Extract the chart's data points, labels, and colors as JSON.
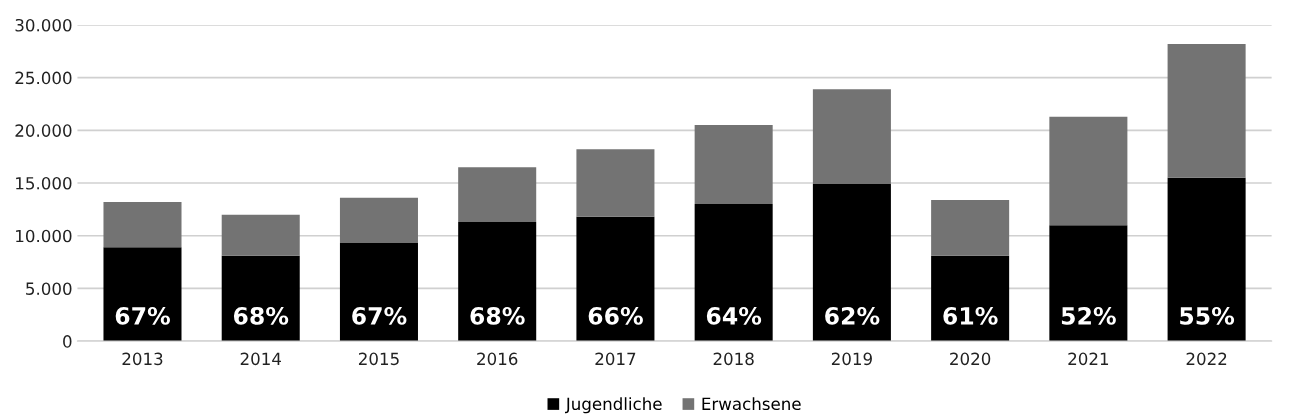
{
  "chart_data": {
    "type": "bar",
    "stacked": true,
    "categories": [
      "2013",
      "2014",
      "2015",
      "2016",
      "2017",
      "2018",
      "2019",
      "2020",
      "2021",
      "2022"
    ],
    "series": [
      {
        "name": "Jugendliche",
        "color": "#000000",
        "values": [
          8900,
          8100,
          9300,
          11300,
          11800,
          13000,
          14900,
          8100,
          11000,
          15500
        ]
      },
      {
        "name": "Erwachsene",
        "color": "#737373",
        "values": [
          4300,
          3900,
          4300,
          5200,
          6400,
          7500,
          9000,
          5300,
          10300,
          12700
        ]
      }
    ],
    "annotations": [
      "67%",
      "68%",
      "67%",
      "68%",
      "66%",
      "64%",
      "62%",
      "61%",
      "52%",
      "55%"
    ],
    "ylim": [
      0,
      30000
    ],
    "yticks": [
      {
        "value": 0,
        "label": "0"
      },
      {
        "value": 5000,
        "label": "5.000"
      },
      {
        "value": 10000,
        "label": "10.000"
      },
      {
        "value": 15000,
        "label": "15.000"
      },
      {
        "value": 20000,
        "label": "20.000"
      },
      {
        "value": 25000,
        "label": "25.000"
      },
      {
        "value": 30000,
        "label": "30.000"
      }
    ],
    "grid": "y",
    "legend": "bottom"
  }
}
